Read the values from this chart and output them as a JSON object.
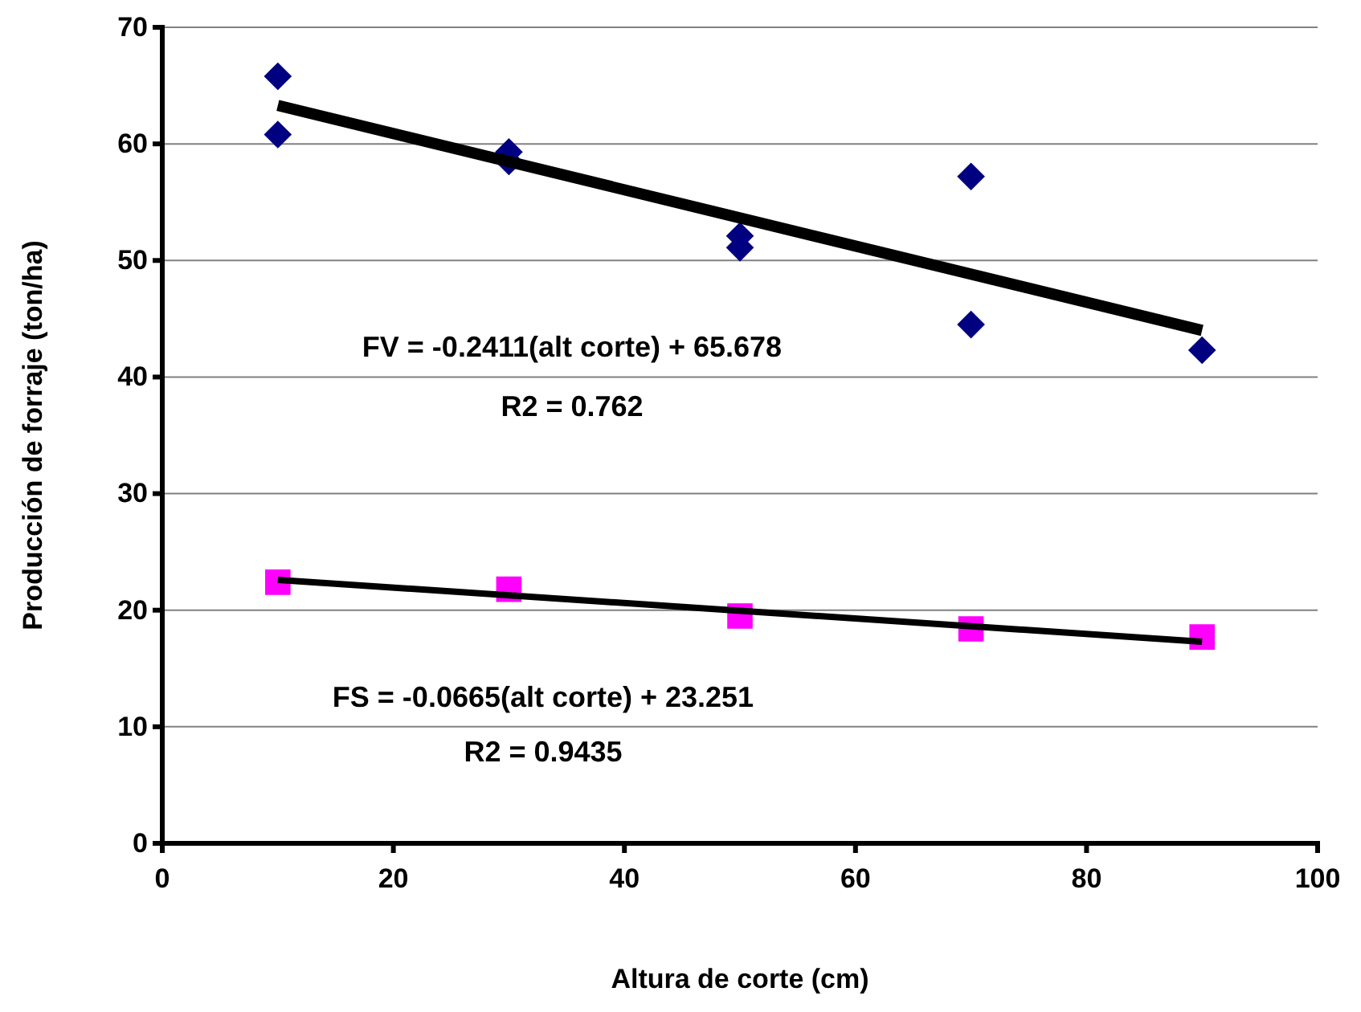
{
  "chart_data": {
    "type": "scatter",
    "xlabel": "Altura de corte (cm)",
    "ylabel": "Producción de forraje (ton/ha)",
    "xlim": [
      0,
      100
    ],
    "xticks": [
      0,
      20,
      40,
      60,
      80,
      100
    ],
    "ylim": [
      0,
      70
    ],
    "yticks": [
      0,
      10,
      20,
      30,
      40,
      50,
      60,
      70
    ],
    "grid": "y",
    "series": [
      {
        "marker": "diamond",
        "color": "#000080",
        "x": [
          10,
          10,
          30,
          30,
          50,
          50,
          70,
          70,
          90
        ],
        "values": [
          65.8,
          60.8,
          59.3,
          58.5,
          52.1,
          51.1,
          57.2,
          44.5,
          42.3
        ]
      },
      {
        "marker": "square",
        "color": "#ff00ff",
        "x": [
          10,
          30,
          50,
          70,
          90
        ],
        "values": [
          22.4,
          21.8,
          19.5,
          18.4,
          17.7
        ]
      },
      {
        "type": "line",
        "color": "#000000",
        "x": [
          10,
          90
        ],
        "values": [
          63.3,
          44.0
        ]
      },
      {
        "type": "line",
        "color": "#000000",
        "x": [
          10,
          90
        ],
        "values": [
          22.6,
          17.3
        ]
      }
    ],
    "annotations": [
      "FV = -0.2411(alt corte) + 65.678",
      "R2 = 0.762",
      "FS = -0.0665(alt corte) + 23.251",
      "R2 = 0.9435"
    ]
  }
}
